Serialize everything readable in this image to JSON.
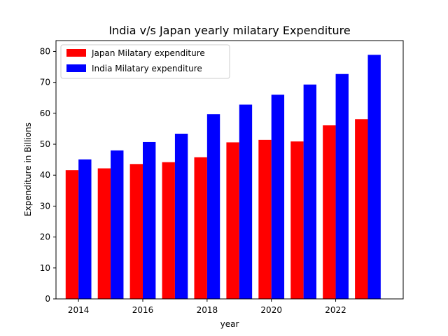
{
  "chart_data": {
    "type": "bar",
    "title": "India v/s Japan yearly milatary Expenditure",
    "xlabel": "year",
    "ylabel": "Expenditure in Billions",
    "x": [
      2014,
      2015,
      2016,
      2017,
      2018,
      2019,
      2020,
      2021,
      2022,
      2023
    ],
    "xlim": [
      2013.3,
      2024.1
    ],
    "xticks": [
      "2014",
      "2016",
      "2018",
      "2020",
      "2022"
    ],
    "ylim": [
      0,
      83.5
    ],
    "yticks": [
      "0",
      "10",
      "20",
      "30",
      "40",
      "50",
      "60",
      "70",
      "80"
    ],
    "series": [
      {
        "name": "Japan Milatary expenditure",
        "color": "#ff0000",
        "values": [
          41.6,
          42.2,
          43.6,
          44.2,
          45.8,
          50.6,
          51.4,
          50.9,
          56.1,
          58.1
        ]
      },
      {
        "name": "India Milatary expenditure",
        "color": "#0000ff",
        "values": [
          45.1,
          48.0,
          50.7,
          53.4,
          59.7,
          62.8,
          66.0,
          69.3,
          72.7,
          78.9
        ]
      }
    ],
    "legend": "top-left",
    "grid": false
  }
}
